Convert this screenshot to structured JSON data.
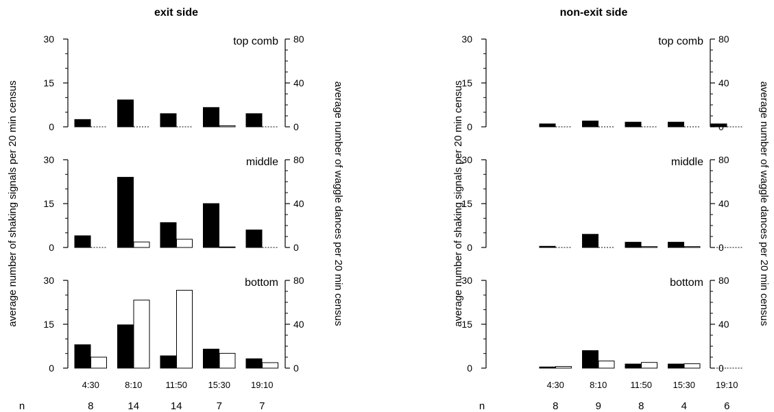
{
  "chart_data": [
    {
      "type": "bar",
      "title": "exit side",
      "ylabel": "average number of shaking signals per 20 min census",
      "ylabel_right": "average number of waggle dances per 20 min census",
      "n_label": "n",
      "categories": [
        "4:30",
        "8:10",
        "11:50",
        "15:30",
        "19:10"
      ],
      "n": [
        "8",
        "14",
        "14",
        "7",
        "7"
      ],
      "ylim_left": [
        0,
        30
      ],
      "ylim_right": [
        0,
        80
      ],
      "left_ticks": [
        "0",
        "15",
        "30"
      ],
      "right_ticks": [
        "0",
        "40",
        "80"
      ],
      "panels": [
        {
          "label": "top comb",
          "series": [
            {
              "axis": "left",
              "fill": "#000000",
              "values": [
                2.5,
                9.2,
                4.5,
                6.6,
                4.5
              ]
            },
            {
              "axis": "right",
              "fill": "#ffffff",
              "values": [
                0,
                0,
                0,
                1,
                0
              ]
            }
          ]
        },
        {
          "label": "middle",
          "series": [
            {
              "axis": "left",
              "fill": "#000000",
              "values": [
                4,
                24,
                8.5,
                15,
                6
              ]
            },
            {
              "axis": "right",
              "fill": "#ffffff",
              "values": [
                0,
                5,
                7.5,
                0.5,
                0
              ]
            }
          ]
        },
        {
          "label": "bottom",
          "series": [
            {
              "axis": "left",
              "fill": "#000000",
              "values": [
                8,
                14.8,
                4.2,
                6.5,
                3.2
              ]
            },
            {
              "axis": "right",
              "fill": "#ffffff",
              "values": [
                10,
                62,
                71,
                13.5,
                5
              ]
            }
          ]
        }
      ]
    },
    {
      "type": "bar",
      "title": "non-exit side",
      "ylabel": "average number of shaking signals per 20 min census",
      "ylabel_right": "average number of waggle dances per 20 min census",
      "n_label": "n",
      "categories": [
        "4:30",
        "8:10",
        "11:50",
        "15:30",
        "19:10"
      ],
      "n": [
        "8",
        "9",
        "8",
        "4",
        "6"
      ],
      "ylim_left": [
        0,
        30
      ],
      "ylim_right": [
        0,
        80
      ],
      "left_ticks": [
        "0",
        "15",
        "30"
      ],
      "right_ticks": [
        "0",
        "40",
        "80"
      ],
      "panels": [
        {
          "label": "top comb",
          "series": [
            {
              "axis": "left",
              "fill": "#000000",
              "values": [
                1,
                2,
                1.6,
                1.6,
                1
              ]
            },
            {
              "axis": "right",
              "fill": "#ffffff",
              "values": [
                0,
                0,
                0,
                0,
                0
              ]
            }
          ]
        },
        {
          "label": "middle",
          "series": [
            {
              "axis": "left",
              "fill": "#000000",
              "values": [
                0.4,
                4.5,
                1.8,
                1.8,
                0
              ]
            },
            {
              "axis": "right",
              "fill": "#ffffff",
              "values": [
                0,
                0,
                0.8,
                0.8,
                0
              ]
            }
          ]
        },
        {
          "label": "bottom",
          "series": [
            {
              "axis": "left",
              "fill": "#000000",
              "values": [
                0.4,
                6,
                1.4,
                1.4,
                0
              ]
            },
            {
              "axis": "right",
              "fill": "#ffffff",
              "values": [
                1.5,
                6.5,
                5.2,
                4,
                0
              ]
            }
          ]
        }
      ]
    }
  ]
}
